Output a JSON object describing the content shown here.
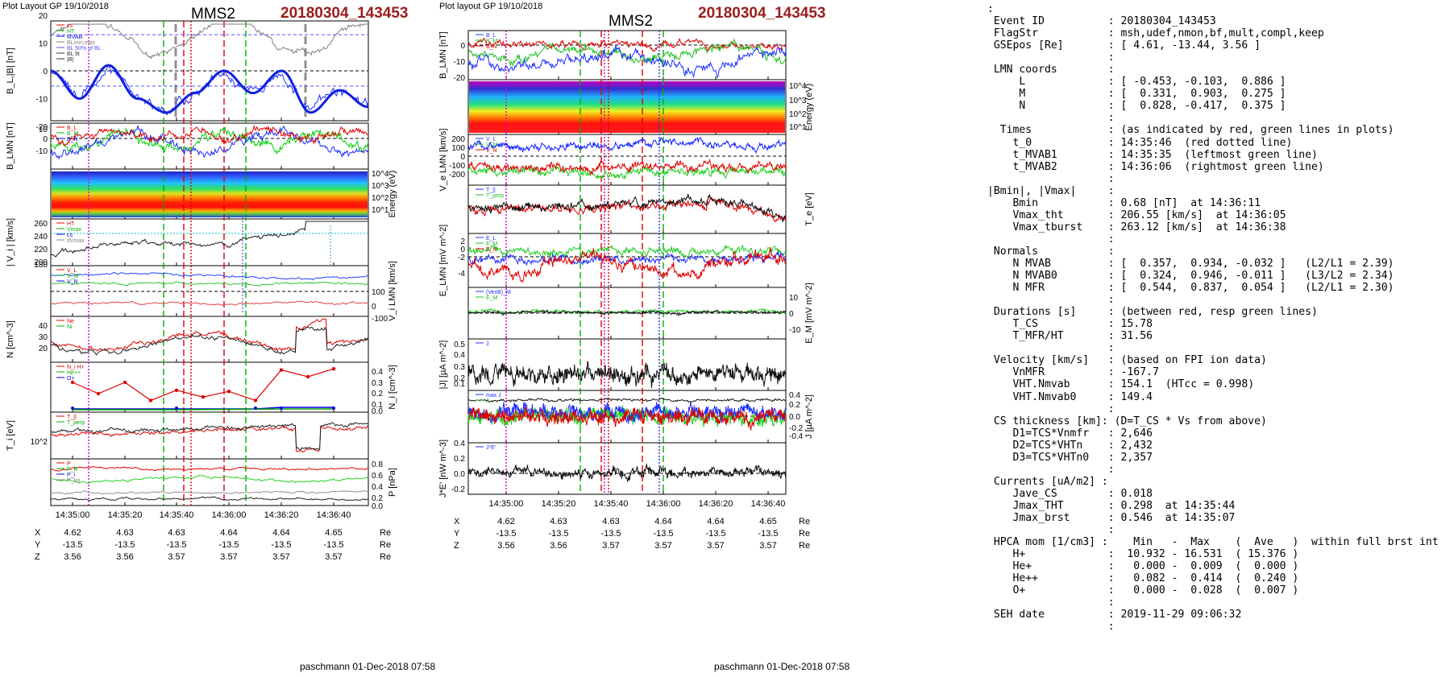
{
  "left": {
    "header": "Plot Layout GP 19/10/2018",
    "title": "MMS2",
    "event": "20180304_143453",
    "footer": "paschmann 01-Dec-2018 07:58",
    "time_ticks": [
      "14:35:00",
      "14:35:20",
      "14:35:40",
      "14:36:00",
      "14:36:20",
      "14:36:40"
    ],
    "coords": {
      "X": [
        "4.62",
        "4.63",
        "4.63",
        "4.64",
        "4.64",
        "4.65"
      ],
      "Y": [
        "-13.5",
        "-13.5",
        "-13.5",
        "-13.5",
        "-13.5",
        "-13.5"
      ],
      "Z": [
        "3.56",
        "3.56",
        "3.57",
        "3.57",
        "3.57",
        "3.57"
      ],
      "unit": "Re"
    },
    "panels": [
      {
        "ylabel": "B_L,|B| [nT]",
        "ticks": [
          "20",
          "10",
          "0",
          "-10",
          "-20"
        ],
        "legend": [
          "cs",
          "HT",
          "MVAB",
          "BLmin,max",
          "BL 50% of BL",
          "BL fit",
          "|B|"
        ]
      },
      {
        "ylabel": "B_LMN [nT]",
        "ticks": [
          "10",
          "0",
          "-10"
        ],
        "legend": [
          "B_L",
          "B_M",
          "B_N"
        ]
      },
      {
        "ylabel_right": "Energy (eV)",
        "ticks_right": [
          "10^4",
          "10^3",
          "10^2",
          "10^1"
        ]
      },
      {
        "ylabel": "| V_i | [km/s]",
        "ticks": [
          "260",
          "240",
          "220",
          "200",
          "180"
        ],
        "legend": [
          "HT",
          "Vmax",
          "cs",
          "dVmax"
        ]
      },
      {
        "ylabel_right": "V_i LMN [km/s]",
        "ticks_right": [
          "100",
          "0",
          "-100"
        ],
        "legend": [
          "V_L",
          "V_M",
          "V_N"
        ]
      },
      {
        "ylabel": "N [cm^-3]",
        "ticks": [
          "40",
          "30",
          "20"
        ],
        "legend": [
          "Ne",
          "Ni"
        ]
      },
      {
        "ylabel_right": "N_i [cm^-3]",
        "ticks_right": [
          "0.4",
          "0.3",
          "0.2",
          "0.1",
          "0.0"
        ],
        "legend": [
          "N_i H+",
          "He++",
          "O+"
        ]
      },
      {
        "ylabel": "T_i [eV]",
        "ticks": [
          "10^2"
        ],
        "legend": [
          "T_||",
          "T_perp"
        ]
      },
      {
        "ylabel_right": "P [nPa]",
        "ticks_right": [
          "0.8",
          "0.6",
          "0.4",
          "0.2",
          "0.0"
        ],
        "legend": [
          "P",
          "P_B",
          "P_i",
          "P_tot"
        ]
      }
    ]
  },
  "middle": {
    "header": "Plot layout GP 19/10/2018",
    "title": "MMS2",
    "event": "20180304_143453",
    "footer": "paschmann 01-Dec-2018 07:58",
    "time_ticks": [
      "14:35:00",
      "14:35:20",
      "14:35:40",
      "14:36:00",
      "14:36:20",
      "14:36:40"
    ],
    "coords": {
      "X": [
        "4.62",
        "4.63",
        "4.63",
        "4.64",
        "4.64",
        "4.65"
      ],
      "Y": [
        "-13.5",
        "-13.5",
        "-13.5",
        "-13.5",
        "-13.5",
        "-13.5"
      ],
      "Z": [
        "3.56",
        "3.56",
        "3.57",
        "3.57",
        "3.57",
        "3.57"
      ],
      "unit": "Re"
    },
    "panels": [
      {
        "ylabel": "B_LMN [nT]",
        "ticks": [
          "0",
          "-10",
          "-20"
        ],
        "legend": [
          "B_L",
          "B_M",
          "B_N"
        ]
      },
      {
        "ylabel_right": "Energy (eV)",
        "ticks_right": [
          "10^4",
          "10^3",
          "10^2",
          "10^1"
        ]
      },
      {
        "ylabel": "V_e LMN [km/s]",
        "ticks": [
          "200",
          "100",
          "0",
          "-100",
          "-200"
        ],
        "legend": [
          "V_L",
          "V_M",
          "V_N"
        ]
      },
      {
        "ylabel_right": "T_e [eV]",
        "legend": [
          "T_||",
          "T_perp"
        ]
      },
      {
        "ylabel": "E_LMN [mV m^-2]",
        "ticks": [
          "2",
          "0",
          "-2",
          "-4"
        ],
        "legend": [
          "E_L",
          "E_M",
          "E_N"
        ]
      },
      {
        "ylabel_right": "E_M [mV m^-2]",
        "ticks_right": [
          "10",
          "0",
          "-10"
        ],
        "legend": [
          "(VexB)_M",
          "E_M"
        ]
      },
      {
        "ylabel": "|J| [µA m^-2]",
        "ticks": [
          "0.5",
          "0.4",
          "0.3",
          "0.2",
          "0.1"
        ],
        "legend": [
          "J"
        ]
      },
      {
        "ylabel_right": "J [µA m^-2]",
        "ticks_right": [
          "0.4",
          "0.2",
          "0.0",
          "-0.2",
          "-0.4"
        ],
        "legend": [
          "max J",
          "J"
        ]
      },
      {
        "ylabel": "J*E' [nW m^-3]",
        "ticks": [
          "0.4",
          "0.2",
          "0.0",
          "-0.2"
        ],
        "legend": [
          "J*E'"
        ]
      }
    ]
  },
  "info_lines": [
    ":",
    " Event ID          : 20180304_143453",
    " FlagStr           : msh,udef,nmon,bf,mult,compl,keep",
    " GSEpos [Re]       : [ 4.61, -13.44, 3.56 ]",
    "                   :",
    " LMN coords        :",
    "     L             : [ -0.453, -0.103,  0.886 ]",
    "     M             : [  0.331,  0.903,  0.275 ]",
    "     N             : [  0.828, -0.417,  0.375 ]",
    "                   :",
    "  Times            : (as indicated by red, green lines in plots)",
    "    t_0            : 14:35:46  (red dotted line)",
    "    t_MVAB1        : 14:35:35  (leftmost green line)",
    "    t_MVAB2        : 14:36:06  (rightmost green line)",
    "                   :",
    "|Bmin|, |Vmax|     :",
    "    Bmin           : 0.68 [nT]  at 14:36:11",
    "    Vmax_tht       : 206.55 [km/s]  at 14:36:05",
    "    Vmax_tburst    : 263.12 [km/s]  at 14:36:38",
    "                   :",
    " Normals           :",
    "    N MVAB         : [  0.357,  0.934, -0.032 ]   (L2/L1 = 2.39)",
    "    N MVAB0        : [  0.324,  0.946, -0.011 ]   (L3/L2 = 2.34)",
    "    N MFR          : [  0.544,  0.837,  0.054 ]   (L2/L1 = 2.30)",
    "                   :",
    " Durations [s]     : (between red, resp green lines)",
    "    T_CS           : 15.78",
    "    T_MFR/HT       : 31.56",
    "                   :",
    " Velocity [km/s]   : (based on FPI ion data)",
    "    VnMFR          : -167.7",
    "    VHT.Nmvab      : 154.1  (HTcc = 0.998)",
    "    VHT.Nmvab0     : 149.4",
    "                   :",
    " CS thickness [km]: (D=T_CS * Vs from above)",
    "    D1=TCS*Vnmfr   : 2,646",
    "    D2=TCS*VHTn    : 2,432",
    "    D3=TCS*VHTn0   : 2,357",
    "                   :",
    " Currents [uA/m2] :",
    "    Jave_CS        : 0.018",
    "    Jmax_THT       : 0.298  at 14:35:44",
    "    Jmax_brst      : 0.546  at 14:35:07",
    "                   :",
    " HPCA mom [1/cm3] :    Min   -  Max    (  Ave   )  within full brst int",
    "    H+             :  10.932 - 16.531  ( 15.376 )",
    "    He+            :   0.000 -  0.009  (  0.000 )",
    "    He++           :   0.082 -  0.414  (  0.240 )",
    "    O+             :   0.000 -  0.028  (  0.007 )",
    "                   :",
    " SEH date          : 2019-11-29 09:06:32",
    "                   :"
  ],
  "colors": {
    "event_title": "#9b1c1c",
    "red": "#e00000",
    "green": "#00c000",
    "blue": "#0000e0",
    "magenta": "#d000d0",
    "gray": "#808080"
  },
  "chart_data": [
    {
      "type": "line",
      "title": "MMS2",
      "subtitle": "20180304_143453",
      "x_range": [
        "14:35:00",
        "14:36:50"
      ],
      "panels": [
        {
          "ylabel": "B_L,|B| [nT]",
          "ylim": [
            -22,
            25
          ],
          "series": [
            {
              "name": "BL fit",
              "x": [
                "14:35:00",
                "14:35:10",
                "14:35:20",
                "14:35:30",
                "14:35:40",
                "14:35:50",
                "14:36:00",
                "14:36:10",
                "14:36:20",
                "14:36:30",
                "14:36:40",
                "14:36:50"
              ],
              "values": [
                0,
                -10,
                2,
                -10,
                -15,
                -8,
                0,
                -8,
                0,
                -15,
                -7,
                -13
              ]
            }
          ]
        },
        {
          "ylabel": "| V_i | [km/s]",
          "ylim": [
            170,
            265
          ],
          "series": [
            {
              "name": "|Vi|",
              "x": [
                "14:35:00",
                "14:35:20",
                "14:35:40",
                "14:36:00",
                "14:36:20",
                "14:36:40"
              ],
              "values": [
                190,
                210,
                195,
                205,
                230,
                255
              ]
            }
          ]
        },
        {
          "ylabel": "N_i [cm^-3]",
          "ylim": [
            0,
            0.45
          ],
          "series": [
            {
              "name": "He++",
              "x": [
                "14:35:00",
                "14:35:10",
                "14:35:20",
                "14:35:30",
                "14:35:40",
                "14:35:50",
                "14:36:00",
                "14:36:10",
                "14:36:20",
                "14:36:30",
                "14:36:40"
              ],
              "values": [
                0.25,
                0.15,
                0.25,
                0.09,
                0.18,
                0.12,
                0.17,
                0.09,
                0.36,
                0.3,
                0.37
              ]
            },
            {
              "name": "O+",
              "x": [
                "14:35:00",
                "14:35:40",
                "14:36:20",
                "14:36:40"
              ],
              "values": [
                0.01,
                0.01,
                0.02,
                0.02
              ]
            }
          ]
        }
      ]
    },
    {
      "type": "line",
      "title": "MMS2",
      "subtitle": "20180304_143453",
      "x_range": [
        "14:35:00",
        "14:36:50"
      ],
      "panels": [
        {
          "ylabel": "|J| [µA m^-2]",
          "ylim": [
            0,
            0.55
          ],
          "series": [
            {
              "name": "J",
              "x": [
                "14:35:07",
                "14:35:44"
              ],
              "values": [
                0.546,
                0.298
              ]
            }
          ]
        }
      ]
    }
  ]
}
